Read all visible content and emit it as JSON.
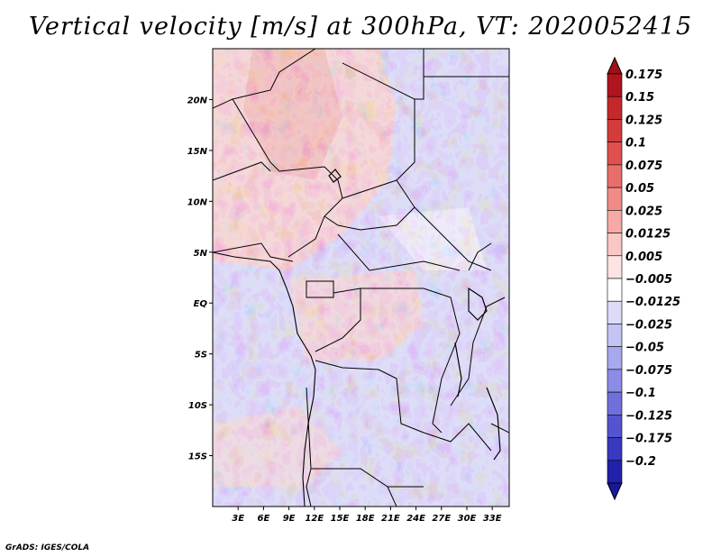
{
  "title": "Vertical velocity [m/s] at 300hPa, VT: 2020052415",
  "credit": "GrADS: IGES/COLA",
  "map": {
    "lon_range": [
      0,
      35
    ],
    "lat_range": [
      -20,
      25
    ],
    "lat_ticks": [
      {
        "value": 20,
        "label": "20N"
      },
      {
        "value": 15,
        "label": "15N"
      },
      {
        "value": 10,
        "label": "10N"
      },
      {
        "value": 5,
        "label": "5N"
      },
      {
        "value": 0,
        "label": "EQ"
      },
      {
        "value": -5,
        "label": "5S"
      },
      {
        "value": -10,
        "label": "10S"
      },
      {
        "value": -15,
        "label": "15S"
      }
    ],
    "lon_ticks": [
      {
        "value": 3,
        "label": "3E"
      },
      {
        "value": 6,
        "label": "6E"
      },
      {
        "value": 9,
        "label": "9E"
      },
      {
        "value": 12,
        "label": "12E"
      },
      {
        "value": 15,
        "label": "15E"
      },
      {
        "value": 18,
        "label": "18E"
      },
      {
        "value": 21,
        "label": "21E"
      },
      {
        "value": 24,
        "label": "24E"
      },
      {
        "value": 27,
        "label": "27E"
      },
      {
        "value": 30,
        "label": "30E"
      },
      {
        "value": 33,
        "label": "33E"
      }
    ]
  },
  "colorbar": {
    "levels": [
      {
        "label": "0.175",
        "color": "#b0141e"
      },
      {
        "label": "0.15",
        "color": "#c4282a"
      },
      {
        "label": "0.125",
        "color": "#d43c3c"
      },
      {
        "label": "0.1",
        "color": "#e0504e"
      },
      {
        "label": "0.075",
        "color": "#e86e6a"
      },
      {
        "label": "0.05",
        "color": "#f08c88"
      },
      {
        "label": "0.025",
        "color": "#f6aaa6"
      },
      {
        "label": "0.0125",
        "color": "#fac8c4"
      },
      {
        "label": "0.005",
        "color": "#fce4e2"
      },
      {
        "label": "−0.005",
        "color": "#ffffff"
      },
      {
        "label": "−0.0125",
        "color": "#dcdcf8"
      },
      {
        "label": "−0.025",
        "color": "#c4c4f4"
      },
      {
        "label": "−0.05",
        "color": "#a8a8ee"
      },
      {
        "label": "−0.075",
        "color": "#8c8ce6"
      },
      {
        "label": "−0.1",
        "color": "#7070dc"
      },
      {
        "label": "−0.125",
        "color": "#5454d0"
      },
      {
        "label": "−0.175",
        "color": "#3838c0"
      },
      {
        "label": "−0.2",
        "color": "#2020aa"
      }
    ],
    "top_cap_color": "#a01018",
    "bottom_cap_color": "#18189c"
  }
}
